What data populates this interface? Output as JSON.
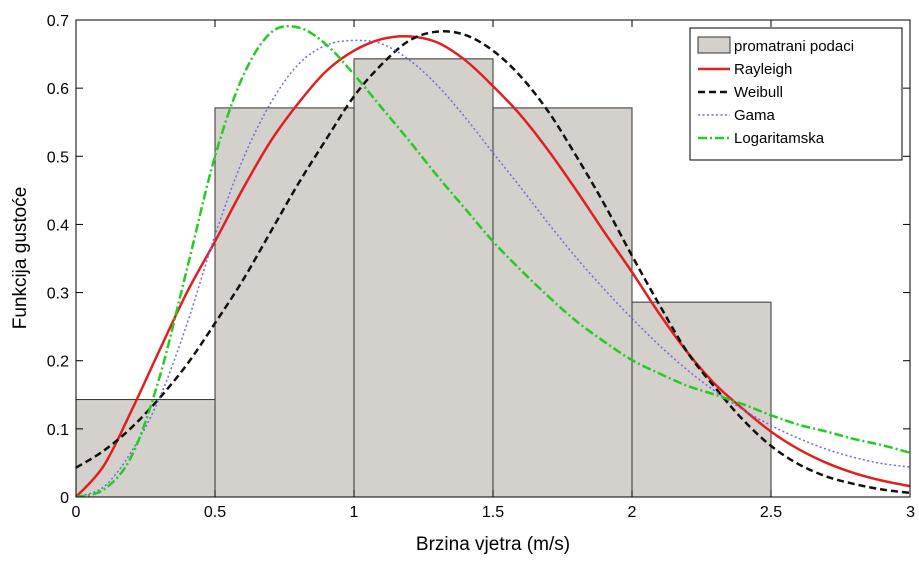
{
  "chart_data": {
    "type": "bar",
    "xlabel": "Brzina vjetra (m/s)",
    "ylabel": "Funkcija gustoće",
    "xlim": [
      0,
      3
    ],
    "ylim": [
      0,
      0.7
    ],
    "xticks": [
      "0",
      "0.5",
      "1",
      "1.5",
      "2",
      "2.5",
      "3"
    ],
    "yticks": [
      "0",
      "0.1",
      "0.2",
      "0.3",
      "0.4",
      "0.5",
      "0.6",
      "0.7"
    ],
    "grid": false,
    "legend_position": "top-right",
    "histogram": {
      "name": "promatrani podaci",
      "color": "#d4d0cb",
      "bins": [
        {
          "x0": 0.0,
          "x1": 0.5,
          "value": 0.143
        },
        {
          "x0": 0.5,
          "x1": 1.0,
          "value": 0.571
        },
        {
          "x0": 1.0,
          "x1": 1.5,
          "value": 0.643
        },
        {
          "x0": 1.5,
          "x1": 2.0,
          "value": 0.571
        },
        {
          "x0": 2.0,
          "x1": 2.5,
          "value": 0.286
        }
      ]
    },
    "series": [
      {
        "name": "Rayleigh",
        "color": "#e02020",
        "style": "solid",
        "x": [
          0,
          0.1,
          0.2,
          0.3,
          0.4,
          0.5,
          0.6,
          0.7,
          0.8,
          0.9,
          1.0,
          1.1,
          1.2,
          1.3,
          1.4,
          1.5,
          1.6,
          1.7,
          1.8,
          1.9,
          2.0,
          2.1,
          2.2,
          2.3,
          2.4,
          2.5,
          2.6,
          2.7,
          2.8,
          2.9,
          3.0
        ],
        "y": [
          0.0,
          0.046,
          0.127,
          0.215,
          0.301,
          0.375,
          0.452,
          0.522,
          0.578,
          0.625,
          0.655,
          0.672,
          0.676,
          0.667,
          0.641,
          0.603,
          0.56,
          0.508,
          0.45,
          0.389,
          0.33,
          0.268,
          0.212,
          0.165,
          0.129,
          0.096,
          0.07,
          0.05,
          0.035,
          0.024,
          0.016
        ]
      },
      {
        "name": "Weibull",
        "color": "#111111",
        "style": "dash",
        "x": [
          0,
          0.1,
          0.2,
          0.3,
          0.4,
          0.5,
          0.6,
          0.7,
          0.8,
          0.9,
          1.0,
          1.1,
          1.2,
          1.3,
          1.4,
          1.5,
          1.6,
          1.7,
          1.8,
          1.9,
          2.0,
          2.1,
          2.2,
          2.3,
          2.4,
          2.5,
          2.6,
          2.7,
          2.8,
          2.9,
          3.0
        ],
        "y": [
          0.043,
          0.068,
          0.102,
          0.145,
          0.195,
          0.255,
          0.318,
          0.389,
          0.46,
          0.525,
          0.588,
          0.635,
          0.67,
          0.683,
          0.678,
          0.655,
          0.617,
          0.565,
          0.5,
          0.43,
          0.354,
          0.281,
          0.212,
          0.16,
          0.113,
          0.075,
          0.048,
          0.03,
          0.019,
          0.011,
          0.006
        ]
      },
      {
        "name": "Gama",
        "color": "#6a6ae6",
        "style": "dot",
        "x": [
          0,
          0.1,
          0.2,
          0.3,
          0.4,
          0.5,
          0.6,
          0.7,
          0.8,
          0.9,
          1.0,
          1.1,
          1.2,
          1.3,
          1.4,
          1.5,
          1.6,
          1.7,
          1.8,
          1.9,
          2.0,
          2.1,
          2.2,
          2.3,
          2.4,
          2.5,
          2.6,
          2.7,
          2.8,
          2.9,
          3.0
        ],
        "y": [
          0.0,
          0.015,
          0.067,
          0.145,
          0.255,
          0.384,
          0.495,
          0.578,
          0.635,
          0.663,
          0.67,
          0.665,
          0.641,
          0.604,
          0.557,
          0.505,
          0.454,
          0.401,
          0.351,
          0.305,
          0.262,
          0.222,
          0.186,
          0.155,
          0.128,
          0.105,
          0.086,
          0.07,
          0.058,
          0.049,
          0.044
        ]
      },
      {
        "name": "Logaritamska",
        "color": "#22cc22",
        "style": "dashdot",
        "x": [
          0,
          0.1,
          0.2,
          0.3,
          0.4,
          0.5,
          0.6,
          0.7,
          0.8,
          0.9,
          1.0,
          1.1,
          1.2,
          1.3,
          1.4,
          1.5,
          1.6,
          1.7,
          1.8,
          1.9,
          2.0,
          2.1,
          2.2,
          2.3,
          2.4,
          2.5,
          2.6,
          2.7,
          2.8,
          2.9,
          3.0
        ],
        "y": [
          0.0,
          0.011,
          0.06,
          0.175,
          0.336,
          0.5,
          0.617,
          0.681,
          0.689,
          0.664,
          0.62,
          0.571,
          0.522,
          0.471,
          0.423,
          0.375,
          0.333,
          0.294,
          0.258,
          0.228,
          0.201,
          0.181,
          0.163,
          0.15,
          0.136,
          0.12,
          0.106,
          0.096,
          0.085,
          0.076,
          0.065
        ]
      }
    ]
  }
}
